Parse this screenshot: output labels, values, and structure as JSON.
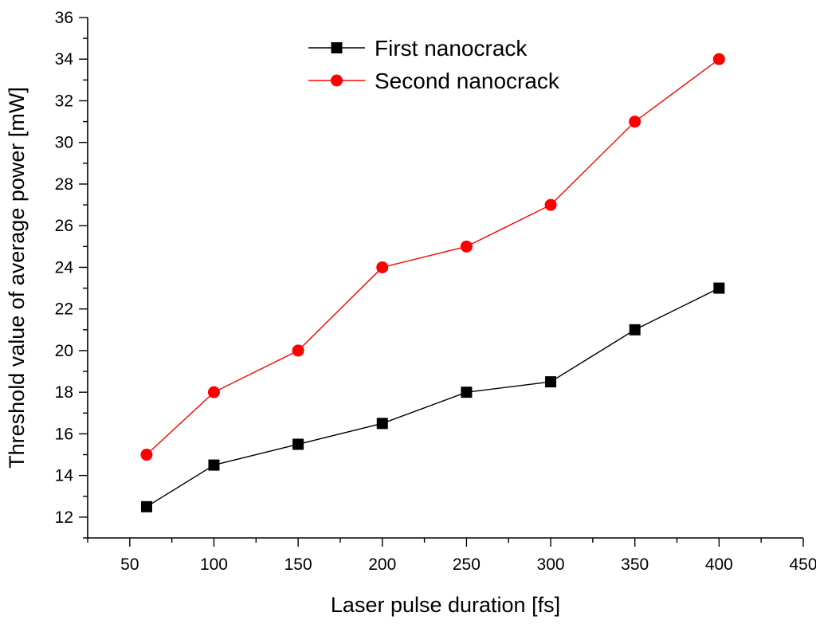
{
  "chart_data": {
    "type": "line",
    "title": "",
    "xlabel": "Laser pulse duration [fs]",
    "ylabel": "Threshold value of average power [mW]",
    "xlim": [
      25,
      450
    ],
    "ylim": [
      11,
      36
    ],
    "xticks": [
      50,
      100,
      150,
      200,
      250,
      300,
      350,
      400,
      450
    ],
    "yticks": [
      12,
      14,
      16,
      18,
      20,
      22,
      24,
      26,
      28,
      30,
      32,
      34,
      36
    ],
    "grid": false,
    "legend_position": "top-center",
    "x": [
      60,
      100,
      150,
      200,
      250,
      300,
      350,
      400
    ],
    "series": [
      {
        "name": "First nanocrack",
        "marker": "square",
        "color": "#000000",
        "values": [
          12.5,
          14.5,
          15.5,
          16.5,
          18,
          18.5,
          21,
          23
        ]
      },
      {
        "name": "Second nanocrack",
        "marker": "circle",
        "color": "#ff0000",
        "values": [
          15,
          18,
          20,
          24,
          25,
          27,
          31,
          34
        ]
      }
    ]
  }
}
